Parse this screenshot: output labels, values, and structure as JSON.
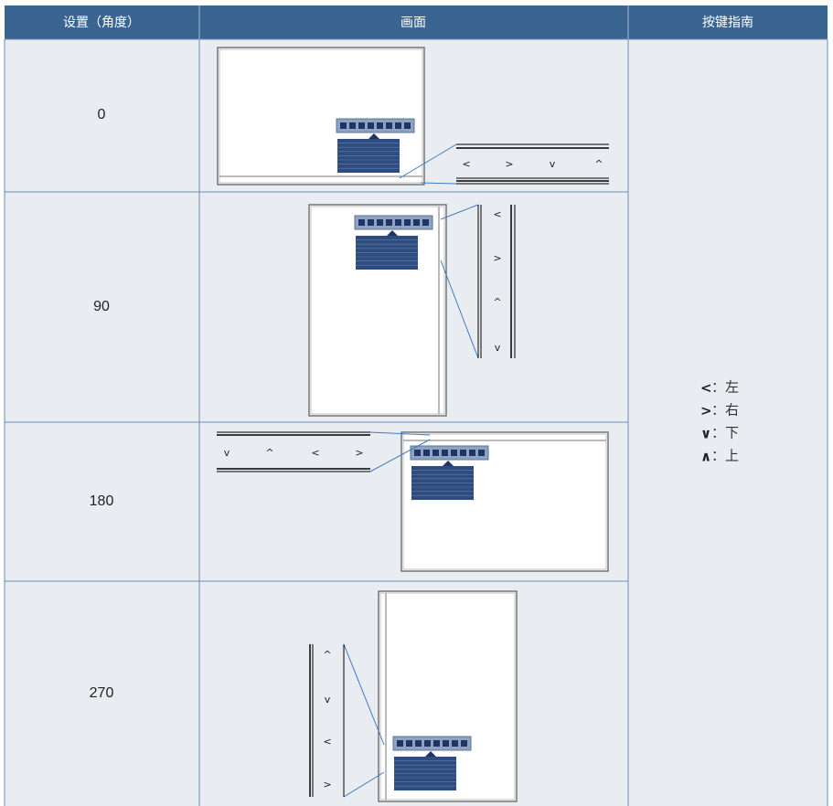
{
  "table": {
    "header": [
      "设置（角度）",
      "画面",
      "按键指南"
    ],
    "rows": [
      {
        "angle": "0",
        "buttons": [
          "<",
          ">",
          "v",
          "^"
        ]
      },
      {
        "angle": "90",
        "buttons": [
          "<",
          ">",
          "^",
          "v"
        ]
      },
      {
        "angle": "180",
        "buttons": [
          "v",
          "^",
          "<",
          ">"
        ]
      },
      {
        "angle": "270",
        "buttons": [
          "^",
          "v",
          "<",
          ">"
        ]
      }
    ],
    "key_guide": [
      {
        "symbol": "<",
        "label": "：左"
      },
      {
        "symbol": ">",
        "label": "：右"
      },
      {
        "symbol": "∨",
        "label": "：下"
      },
      {
        "symbol": "∧",
        "label": "：上"
      }
    ]
  }
}
